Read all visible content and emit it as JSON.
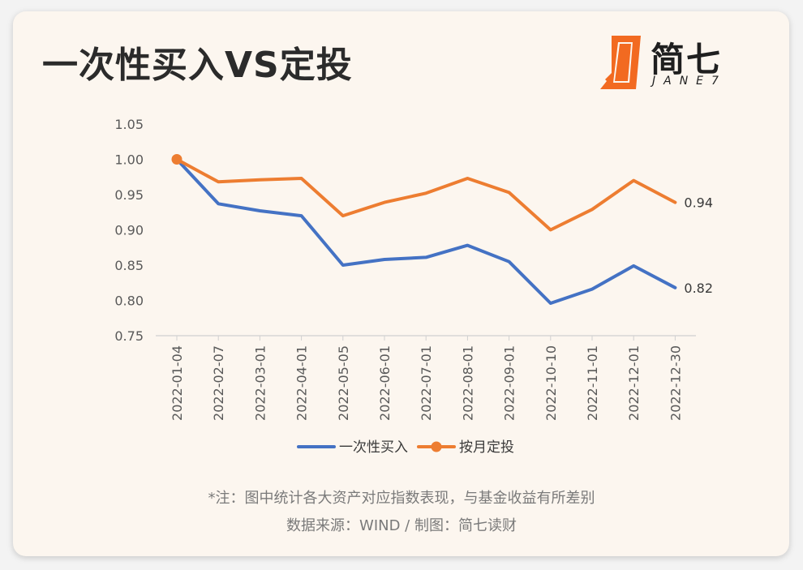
{
  "header": {
    "title": "一次性买入VS定投",
    "logo_name": "简七",
    "logo_sub": "JANE7"
  },
  "colors": {
    "lump_sum": "#4472c4",
    "dca": "#ed7d31",
    "axis_text": "#595959",
    "axis_line": "#d0d0d0",
    "logo_orange": "#f26a21"
  },
  "chart_data": {
    "type": "line",
    "categories": [
      "2022-01-04",
      "2022-02-07",
      "2022-03-01",
      "2022-04-01",
      "2022-05-05",
      "2022-06-01",
      "2022-07-01",
      "2022-08-01",
      "2022-09-01",
      "2022-10-10",
      "2022-11-01",
      "2022-12-01",
      "2022-12-30"
    ],
    "series": [
      {
        "name": "一次性买入",
        "color": "#4472c4",
        "marker": false,
        "values": [
          1.0,
          0.937,
          0.927,
          0.92,
          0.85,
          0.858,
          0.861,
          0.878,
          0.855,
          0.796,
          0.816,
          0.849,
          0.818
        ],
        "end_label": "0.82"
      },
      {
        "name": "按月定投",
        "color": "#ed7d31",
        "marker": "first",
        "values": [
          1.0,
          0.968,
          0.971,
          0.973,
          0.92,
          0.939,
          0.952,
          0.973,
          0.953,
          0.9,
          0.929,
          0.97,
          0.939
        ],
        "end_label": "0.94"
      }
    ],
    "ylim": [
      0.75,
      1.05
    ],
    "yticks": [
      "1.05",
      "1.00",
      "0.95",
      "0.90",
      "0.85",
      "0.80",
      "0.75"
    ],
    "ytick_values": [
      1.05,
      1.0,
      0.95,
      0.9,
      0.85,
      0.8,
      0.75
    ],
    "legend_position": "bottom",
    "grid": false
  },
  "footnote": {
    "line1": "*注：图中统计各大资产对应指数表现，与基金收益有所差别",
    "line2": "数据来源：WIND / 制图：简七读财"
  }
}
